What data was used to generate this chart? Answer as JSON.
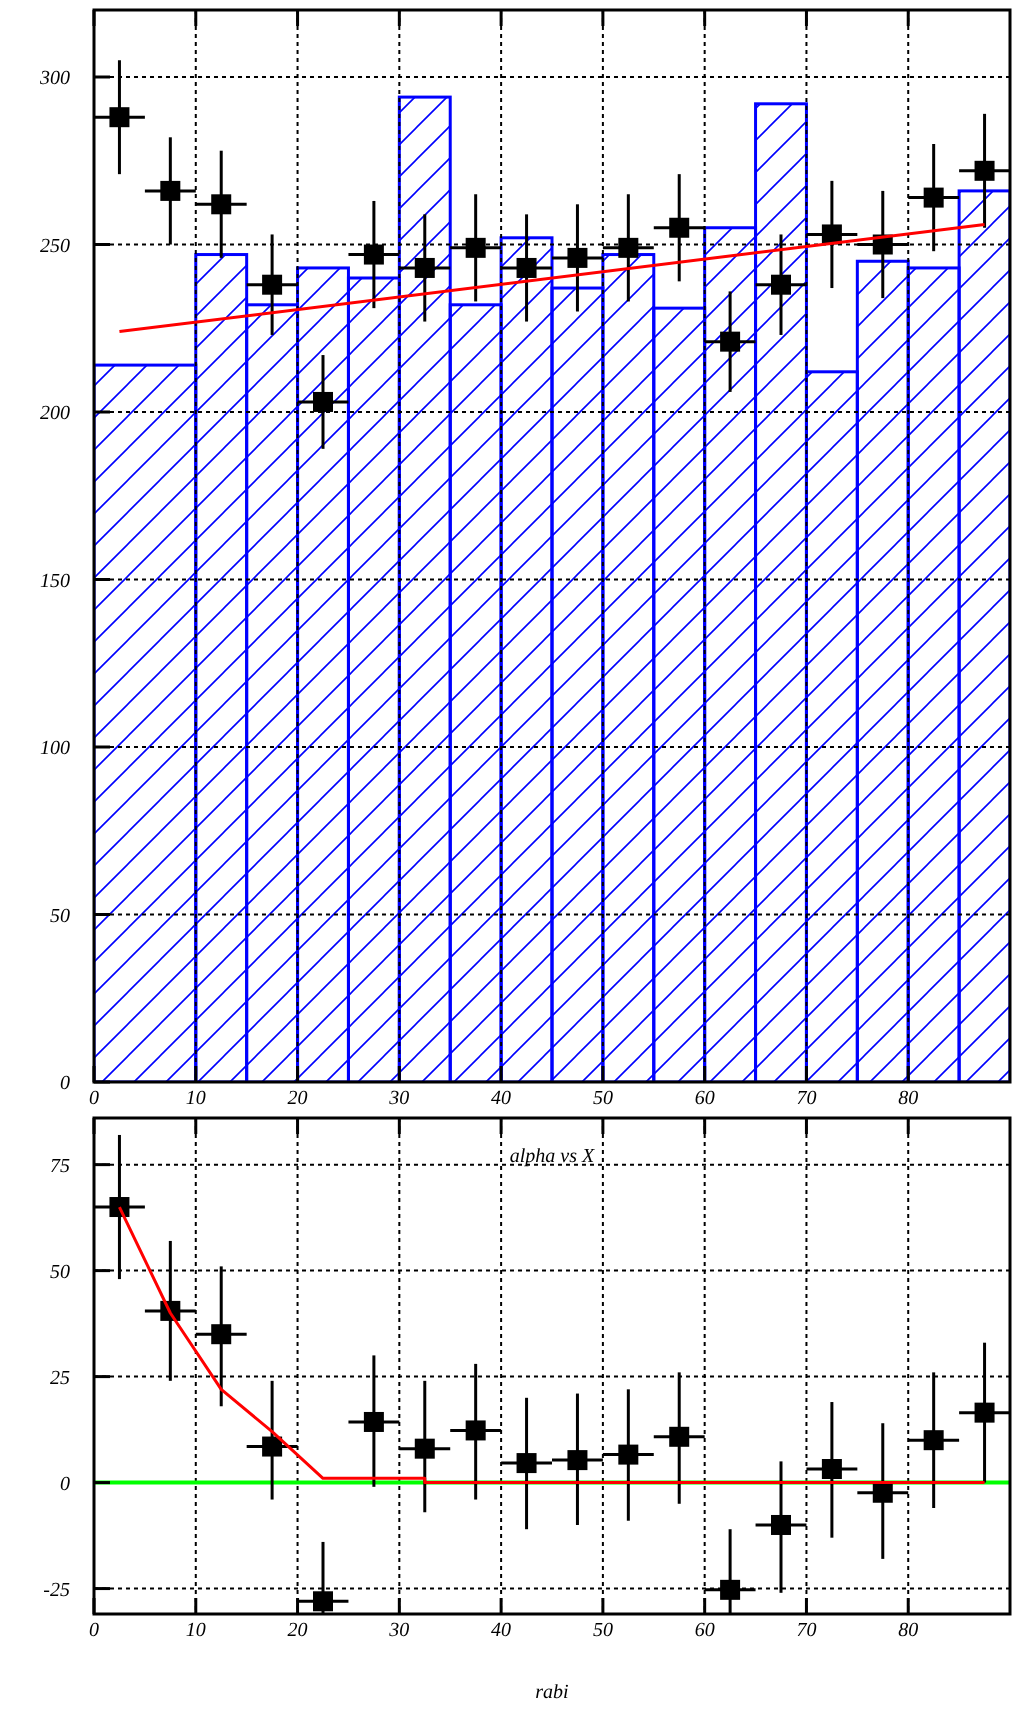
{
  "chart_data": [
    {
      "type": "histogram",
      "xlim": [
        0,
        90
      ],
      "ylim": [
        0,
        320
      ],
      "xticks": [
        0,
        10,
        20,
        30,
        40,
        50,
        60,
        70,
        80
      ],
      "yticks": [
        0,
        50,
        100,
        150,
        200,
        250,
        300
      ],
      "grid": true,
      "series": [
        {
          "color": "#0000ff",
          "bins": [
            0,
            10,
            15,
            20,
            25,
            30,
            35,
            40,
            45,
            50,
            55,
            60,
            65,
            70,
            75,
            80,
            85,
            90
          ],
          "values": [
            214,
            247,
            232,
            243,
            240,
            294,
            232,
            252,
            237,
            247,
            231,
            255,
            292,
            212,
            245,
            243,
            266
          ]
        },
        {
          "type": "scatter",
          "color": "#000000",
          "marker": "square",
          "x": [
            2.5,
            7.5,
            12.5,
            17.5,
            22.5,
            27.5,
            32.5,
            37.5,
            42.5,
            47.5,
            52.5,
            57.5,
            62.5,
            67.5,
            72.5,
            77.5,
            82.5,
            87.5
          ],
          "values": [
            288,
            266,
            262,
            238,
            203,
            247,
            243,
            249,
            243,
            246,
            249,
            255,
            221,
            238,
            253,
            250,
            264,
            272
          ],
          "errors": [
            17,
            16,
            16,
            15,
            14,
            16,
            16,
            16,
            16,
            16,
            16,
            16,
            15,
            15,
            16,
            16,
            16,
            17
          ],
          "xerrors": [
            2.5,
            2.5,
            2.5,
            2.5,
            2.5,
            2.5,
            2.5,
            2.5,
            2.5,
            2.5,
            2.5,
            2.5,
            2.5,
            2.5,
            2.5,
            2.5,
            2.5,
            2.5
          ]
        },
        {
          "type": "line",
          "color": "#ff0000",
          "x": [
            2.5,
            87.5
          ],
          "values": [
            224,
            256
          ]
        }
      ]
    },
    {
      "type": "scatter",
      "title": "alpha vs X",
      "xlabel": "rabi",
      "xlim": [
        0,
        90
      ],
      "ylim": [
        -31,
        86
      ],
      "xticks": [
        0,
        10,
        20,
        30,
        40,
        50,
        60,
        70,
        80
      ],
      "yticks": [
        -25,
        0,
        25,
        50,
        75
      ],
      "grid": true,
      "ref_lines": [
        {
          "axis": "y",
          "value": 0,
          "color": "#00ff00"
        }
      ],
      "series": [
        {
          "color": "#000000",
          "marker": "square",
          "x": [
            2.5,
            7.5,
            12.5,
            17.5,
            22.5,
            27.5,
            32.5,
            37.5,
            42.5,
            47.5,
            52.5,
            57.5,
            62.5,
            67.5,
            72.5,
            77.5,
            82.5,
            87.5
          ],
          "values": [
            65,
            40.5,
            35,
            8.5,
            -28,
            14.3,
            8,
            12.3,
            4.6,
            5.3,
            6.6,
            10.8,
            -25.3,
            -10,
            3.2,
            -2.4,
            10,
            16.5
          ],
          "errors": [
            [
              48,
              82
            ],
            [
              24,
              57
            ],
            [
              18,
              51
            ],
            [
              -4,
              24
            ],
            [
              -31,
              -14
            ],
            [
              -1,
              30
            ],
            [
              -7,
              24
            ],
            [
              -4,
              28
            ],
            [
              -11,
              20
            ],
            [
              -10,
              21
            ],
            [
              -9,
              22
            ],
            [
              -5,
              26
            ],
            [
              -31,
              -11
            ],
            [
              -26,
              5
            ],
            [
              -13,
              19
            ],
            [
              -18,
              14
            ],
            [
              -6,
              26
            ],
            [
              0,
              33
            ]
          ],
          "xerrors": [
            2.5,
            2.5,
            2.5,
            2.5,
            2.5,
            2.5,
            2.5,
            2.5,
            2.5,
            2.5,
            2.5,
            2.5,
            2.5,
            2.5,
            2.5,
            2.5,
            2.5,
            2.5
          ]
        },
        {
          "type": "line",
          "color": "#ff0000",
          "x": [
            2.5,
            7.5,
            12.5,
            17.5,
            22.5,
            32.5,
            32.5,
            87.5
          ],
          "values": [
            65,
            40,
            22,
            12,
            1,
            1,
            0,
            0
          ]
        }
      ]
    }
  ]
}
